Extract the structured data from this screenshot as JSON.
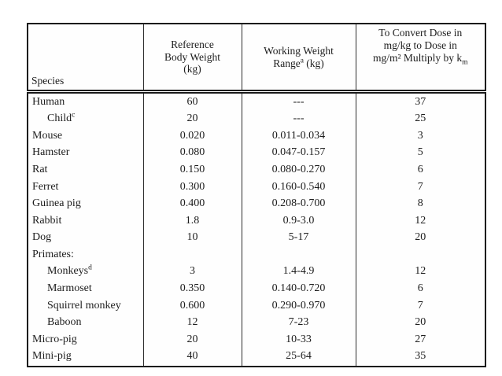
{
  "table": {
    "headers": {
      "species": "Species",
      "ref_weight": {
        "line1": "Reference",
        "line2": "Body Weight",
        "line3": "(kg)"
      },
      "working_range": {
        "line1": "Working Weight",
        "line2_base": "Range",
        "line2_sup": "a",
        "line2_rest": " (kg)"
      },
      "km_factor": {
        "line1": "To Convert Dose in",
        "line2": "mg/kg to Dose in",
        "line3_base": "mg/m² Multiply by k",
        "line3_sub": "m"
      }
    },
    "rows": [
      {
        "species": "Human",
        "sup": "",
        "ref": "60",
        "range": "---",
        "km": "37"
      },
      {
        "species": "Child",
        "sup": "c",
        "ref": "20",
        "range": "---",
        "km": "25"
      },
      {
        "species": "Mouse",
        "sup": "",
        "ref": "0.020",
        "range": "0.011-0.034",
        "km": "3"
      },
      {
        "species": "Hamster",
        "sup": "",
        "ref": "0.080",
        "range": "0.047-0.157",
        "km": "5"
      },
      {
        "species": "Rat",
        "sup": "",
        "ref": "0.150",
        "range": "0.080-0.270",
        "km": "6"
      },
      {
        "species": "Ferret",
        "sup": "",
        "ref": "0.300",
        "range": "0.160-0.540",
        "km": "7"
      },
      {
        "species": "Guinea pig",
        "sup": "",
        "ref": "0.400",
        "range": "0.208-0.700",
        "km": "8"
      },
      {
        "species": "Rabbit",
        "sup": "",
        "ref": "1.8",
        "range": "0.9-3.0",
        "km": "12"
      },
      {
        "species": "Dog",
        "sup": "",
        "ref": "10",
        "range": "5-17",
        "km": "20"
      },
      {
        "species": "Primates:",
        "sup": "",
        "ref": "",
        "range": "",
        "km": ""
      },
      {
        "species": "Monkeys",
        "sup": "d",
        "ref": "3",
        "range": "1.4-4.9",
        "km": "12"
      },
      {
        "species": "Marmoset",
        "sup": "",
        "ref": "0.350",
        "range": "0.140-0.720",
        "km": "6"
      },
      {
        "species": "Squirrel monkey",
        "sup": "",
        "ref": "0.600",
        "range": "0.290-0.970",
        "km": "7"
      },
      {
        "species": "Baboon",
        "sup": "",
        "ref": "12",
        "range": "7-23",
        "km": "20"
      },
      {
        "species": "Micro-pig",
        "sup": "",
        "ref": "20",
        "range": "10-33",
        "km": "27"
      },
      {
        "species": "Mini-pig",
        "sup": "",
        "ref": "40",
        "range": "25-64",
        "km": "35"
      }
    ]
  }
}
